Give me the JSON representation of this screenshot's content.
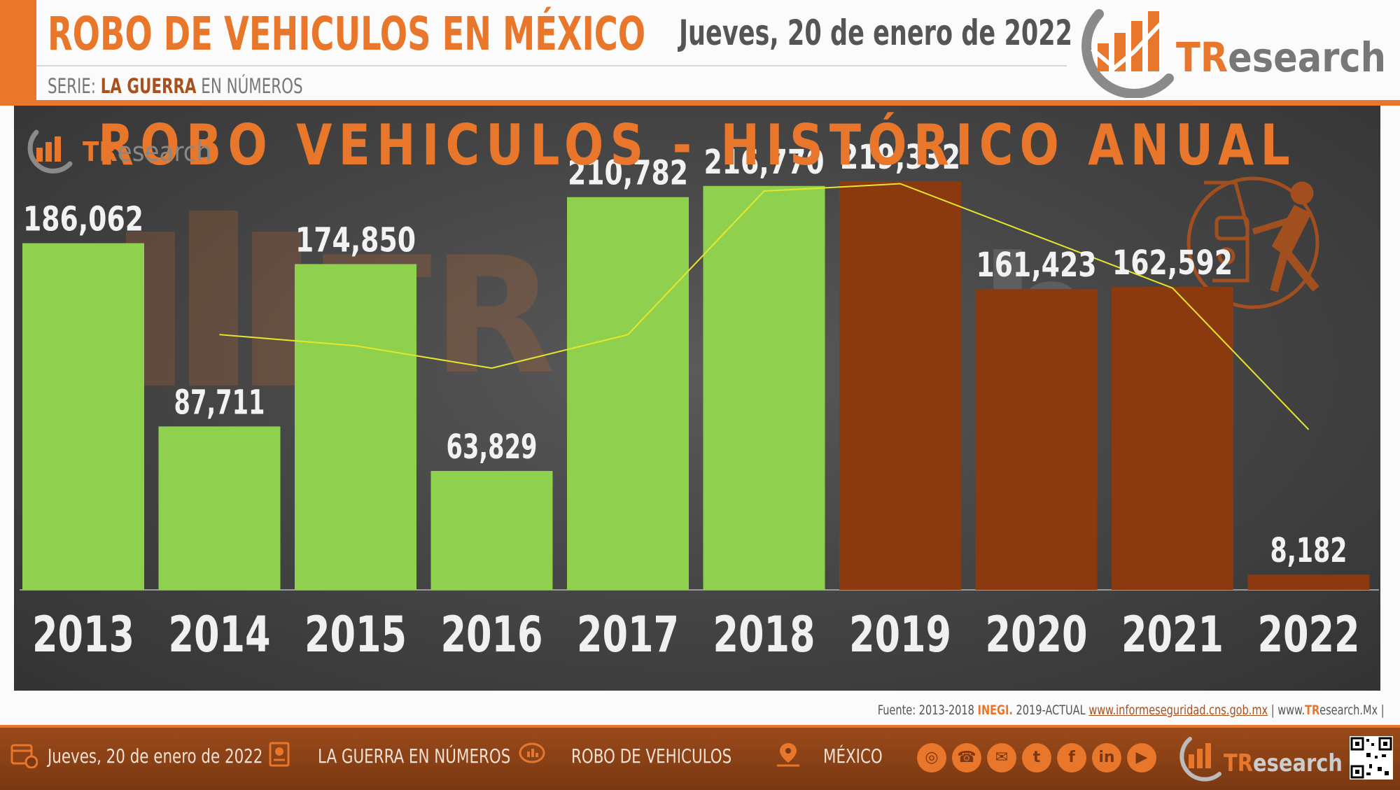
{
  "header": {
    "title": "ROBO DE VEHICULOS EN MÉXICO",
    "series_prefix": "SERIE:",
    "series_name": "LA GUERRA",
    "series_suffix": "EN NÚMEROS",
    "date": "Jueves, 20 de enero de 2022",
    "brand_tr": "TR",
    "brand_rest": "esearch"
  },
  "colors": {
    "accent": "#e8762b",
    "green_bar": "#8fd14f",
    "brown_bar": "#8b3a10",
    "trend_line": "#e6e62a"
  },
  "chart_data": {
    "type": "bar",
    "title": "ROBO VEHICULOS - HISTÓRICO ANUAL",
    "categories": [
      "2013",
      "2014",
      "2015",
      "2016",
      "2017",
      "2018",
      "2019",
      "2020",
      "2021",
      "2022"
    ],
    "values": [
      186062,
      87711,
      174850,
      63829,
      210782,
      216770,
      219332,
      161423,
      162592,
      8182
    ],
    "data_labels": [
      "186,062",
      "87,711",
      "174,850",
      "63,829",
      "210,782",
      "216,770",
      "219,332",
      "161,423",
      "162,592",
      "8,182"
    ],
    "bar_colors": [
      "#8fd14f",
      "#8fd14f",
      "#8fd14f",
      "#8fd14f",
      "#8fd14f",
      "#8fd14f",
      "#8b3a10",
      "#8b3a10",
      "#8b3a10",
      "#8b3a10"
    ],
    "trend_line": {
      "type": "line",
      "x": [
        "2014",
        "2015",
        "2016",
        "2017",
        "2018",
        "2019",
        "2020",
        "2021",
        "2022"
      ],
      "values": [
        137000,
        131000,
        119000,
        137000,
        214000,
        218000,
        190000,
        162000,
        86000
      ]
    },
    "xlabel": "",
    "ylabel": "",
    "ylim": [
      0,
      230000
    ],
    "grid": false,
    "legend": "none"
  },
  "footer": {
    "source_prefix": "Fuente: 2013-2018",
    "source_inegi": "INEGI.",
    "source_mid": "2019-ACTUAL",
    "source_url": "www.informeseguridad.cns.gob.mx",
    "site_pre": "www.",
    "site_tr": "TR",
    "site_post": "esearch.Mx",
    "date": "Jueves, 20 de enero de 2022",
    "series": "LA GUERRA EN NÚMEROS",
    "topic": "ROBO DE VEHICULOS",
    "place": "MÉXICO",
    "social_icons": [
      "globe-icon",
      "phone-icon",
      "mail-icon",
      "twitter-icon",
      "facebook-icon",
      "linkedin-icon",
      "youtube-icon"
    ]
  }
}
